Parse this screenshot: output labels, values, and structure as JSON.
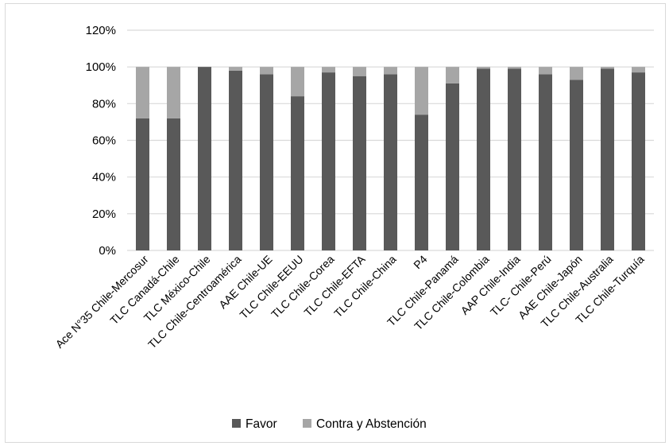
{
  "chart_data": {
    "type": "bar",
    "stacked": true,
    "categories": [
      "Ace N°35 Chile-Mercosur",
      "TLC Canadá-Chile",
      "TLC México-Chile",
      "TLC Chile-Centroamérica",
      "AAE Chile-UE",
      "TLC Chile-EEUU",
      "TLC Chile-Corea",
      "TLC Chile-EFTA",
      "TLC Chile-China",
      "P4",
      "TLC Chile-Panamá",
      "TLC Chile-Colombia",
      "AAP Chile-India",
      "TLC- Chile-Perú",
      "AAE Chile-Japón",
      "TLC Chile-Australia",
      "TLC Chile-Turquía"
    ],
    "series": [
      {
        "name": "Favor",
        "values": [
          72,
          72,
          100,
          98,
          96,
          84,
          97,
          95,
          96,
          74,
          91,
          99,
          99,
          96,
          93,
          99,
          97
        ]
      },
      {
        "name": "Contra y Abstención",
        "values": [
          28,
          28,
          0,
          2,
          4,
          16,
          3,
          5,
          4,
          26,
          9,
          1,
          1,
          4,
          7,
          1,
          3
        ]
      }
    ],
    "y_ticks": [
      "0%",
      "20%",
      "40%",
      "60%",
      "80%",
      "100%",
      "120%"
    ],
    "ylim": [
      0,
      120
    ],
    "grid": true,
    "legend_position": "bottom",
    "colors": {
      "Favor": "#595959",
      "Contra y Abstención": "#a6a6a6",
      "grid": "#d9d9d9"
    },
    "title": "",
    "xlabel": "",
    "ylabel": ""
  }
}
